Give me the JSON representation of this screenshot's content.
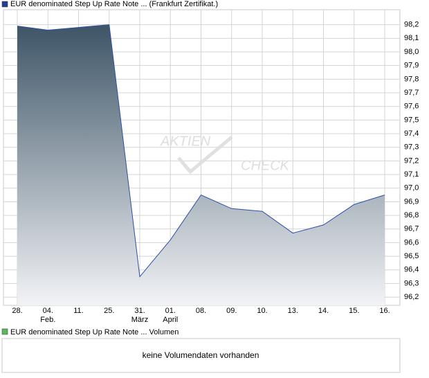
{
  "chart_data": {
    "type": "area",
    "title": "EUR denominated Step Up Rate Note ... (Frankfurt Zertifikat.)",
    "legend_color": "#1f3f8f",
    "color": "#2b4fa8",
    "categories": [
      "28.",
      "04.",
      "11.",
      "25.",
      "31.",
      "01.",
      "08.",
      "09.",
      "10.",
      "13.",
      "14.",
      "15.",
      "16."
    ],
    "month_labels": [
      null,
      "Feb.",
      null,
      null,
      "März",
      "April",
      null,
      null,
      null,
      null,
      null,
      null,
      null
    ],
    "values": [
      98.19,
      98.16,
      98.18,
      98.2,
      96.35,
      96.62,
      96.95,
      96.85,
      96.83,
      96.67,
      96.73,
      96.88,
      96.95
    ],
    "ylim": [
      96.14,
      98.31
    ],
    "yticks": [
      {
        "value": 96.2,
        "label": "96,2"
      },
      {
        "value": 96.3,
        "label": "96,3"
      },
      {
        "value": 96.4,
        "label": "96,4"
      },
      {
        "value": 96.5,
        "label": "96,5"
      },
      {
        "value": 96.6,
        "label": "96,6"
      },
      {
        "value": 96.7,
        "label": "96,7"
      },
      {
        "value": 96.8,
        "label": "96,8"
      },
      {
        "value": 96.9,
        "label": "96,9"
      },
      {
        "value": 97.0,
        "label": "97,0"
      },
      {
        "value": 97.1,
        "label": "97,1"
      },
      {
        "value": 97.2,
        "label": "97,2"
      },
      {
        "value": 97.3,
        "label": "97,3"
      },
      {
        "value": 97.4,
        "label": "97,4"
      },
      {
        "value": 97.5,
        "label": "97,5"
      },
      {
        "value": 97.6,
        "label": "97,6"
      },
      {
        "value": 97.7,
        "label": "97,7"
      },
      {
        "value": 97.8,
        "label": "97,8"
      },
      {
        "value": 97.9,
        "label": "97,9"
      },
      {
        "value": 98.0,
        "label": "98,0"
      },
      {
        "value": 98.1,
        "label": "98,1"
      },
      {
        "value": 98.2,
        "label": "98,2"
      }
    ],
    "grid": true,
    "watermark": [
      "AKTIEN",
      "CHECK"
    ],
    "volume": {
      "title": "EUR denominated Step Up Rate Note ... Volumen",
      "legend_color": "#5cb85c",
      "message": "keine Volumendaten vorhanden"
    }
  }
}
